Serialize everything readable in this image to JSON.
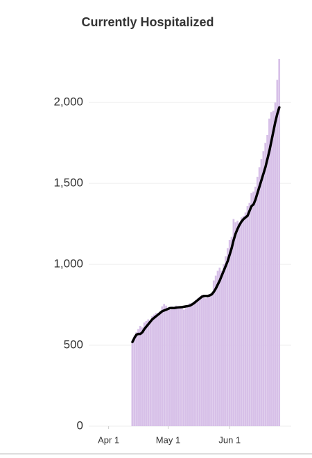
{
  "chart_data": {
    "type": "bar-line",
    "title": "Currently Hospitalized",
    "x": [
      12,
      13,
      14,
      15,
      16,
      17,
      18,
      19,
      20,
      21,
      22,
      23,
      24,
      25,
      26,
      27,
      28,
      29,
      30,
      31,
      32,
      33,
      34,
      35,
      36,
      37,
      38,
      39,
      40,
      41,
      42,
      43,
      44,
      45,
      46,
      47,
      48,
      49,
      50,
      51,
      52,
      53,
      54,
      55,
      56,
      57,
      58,
      59,
      60,
      61,
      62,
      63,
      64,
      65,
      66,
      67,
      68,
      69,
      70,
      71,
      72,
      73,
      74,
      75,
      76,
      77,
      78,
      79,
      80,
      81,
      82,
      83,
      84,
      85,
      86
    ],
    "series": [
      {
        "type": "bar",
        "color": "#d7c0e8",
        "values": [
          530,
          560,
          580,
          600,
          620,
          610,
          640,
          650,
          660,
          650,
          680,
          690,
          700,
          680,
          710,
          740,
          755,
          745,
          730,
          720,
          740,
          730,
          745,
          740,
          735,
          740,
          720,
          730,
          750,
          760,
          755,
          770,
          780,
          790,
          800,
          810,
          800,
          790,
          810,
          800,
          820,
          900,
          930,
          960,
          980,
          960,
          1000,
          1050,
          1100,
          1150,
          1170,
          1280,
          1260,
          1270,
          1250,
          1290,
          1300,
          1320,
          1360,
          1380,
          1440,
          1450,
          1480,
          1540,
          1600,
          1650,
          1700,
          1750,
          1800,
          1900,
          1940,
          1950,
          2000,
          2140,
          2270
        ]
      },
      {
        "type": "line",
        "color": "#000000",
        "values": [
          520,
          545,
          565,
          570,
          570,
          580,
          600,
          615,
          630,
          645,
          660,
          670,
          680,
          690,
          700,
          710,
          715,
          720,
          725,
          730,
          730,
          730,
          732,
          734,
          735,
          736,
          738,
          740,
          742,
          745,
          752,
          760,
          770,
          780,
          790,
          800,
          805,
          805,
          805,
          808,
          815,
          830,
          850,
          875,
          900,
          930,
          960,
          990,
          1020,
          1060,
          1100,
          1150,
          1190,
          1220,
          1245,
          1265,
          1280,
          1290,
          1300,
          1330,
          1360,
          1370,
          1400,
          1440,
          1480,
          1520,
          1560,
          1600,
          1650,
          1700,
          1760,
          1820,
          1880,
          1930,
          1970
        ]
      }
    ],
    "xlim": [
      -10,
      92
    ],
    "xticks": [
      {
        "value": 0,
        "label": "Apr 1"
      },
      {
        "value": 30,
        "label": "May 1"
      },
      {
        "value": 61,
        "label": "Jun 1"
      }
    ],
    "ylim": [
      0,
      2300
    ],
    "yticks": [
      0,
      {
        "value": 500,
        "label": "500"
      },
      {
        "value": 1000,
        "label": "1,000"
      },
      {
        "value": 1500,
        "label": "1,500"
      },
      {
        "value": 2000,
        "label": "2,000"
      }
    ],
    "grid": true
  }
}
